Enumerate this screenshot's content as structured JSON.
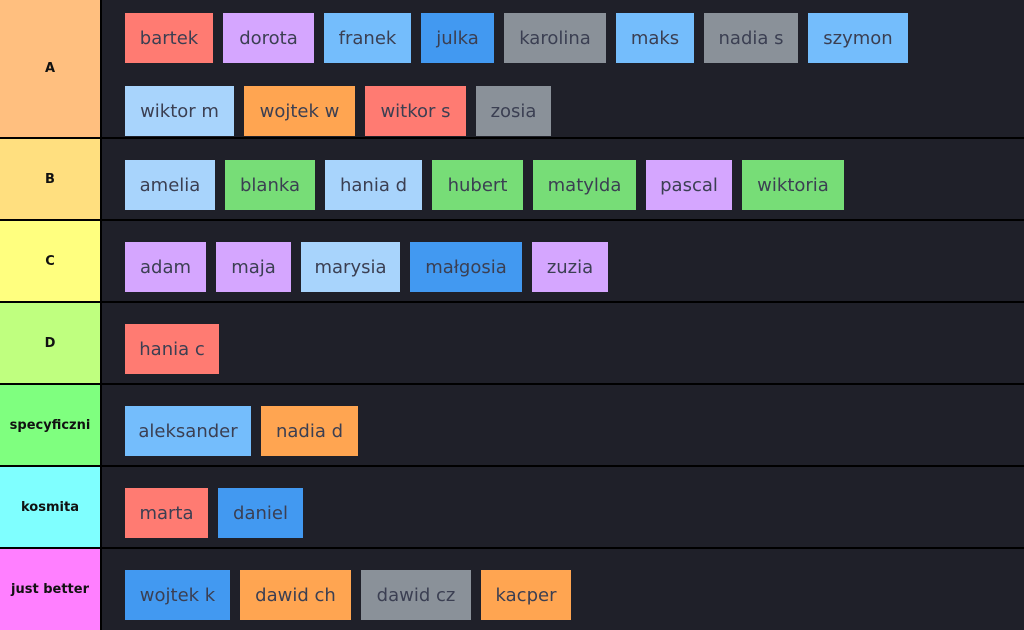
{
  "tiers": [
    {
      "label": "A",
      "color": "#ffbf7f",
      "items": [
        {
          "name": "bartek",
          "color": "#ff7b72"
        },
        {
          "name": "dorota",
          "color": "#d5a6ff"
        },
        {
          "name": "franek",
          "color": "#74bdfc"
        },
        {
          "name": "julka",
          "color": "#4299f1"
        },
        {
          "name": "karolina",
          "color": "#8a9199"
        },
        {
          "name": "maks",
          "color": "#74bdfc"
        },
        {
          "name": "nadia s",
          "color": "#8a9199"
        },
        {
          "name": "szymon",
          "color": "#74bdfc"
        },
        {
          "name": "wiktor m",
          "color": "#a8d4fc"
        },
        {
          "name": "wojtek w",
          "color": "#ffa551"
        },
        {
          "name": "witkor s",
          "color": "#ff7b72"
        },
        {
          "name": "zosia",
          "color": "#8a9199"
        }
      ]
    },
    {
      "label": "B",
      "color": "#ffdf7f",
      "items": [
        {
          "name": "amelia",
          "color": "#a8d4fc"
        },
        {
          "name": "blanka",
          "color": "#77dd77"
        },
        {
          "name": "hania d",
          "color": "#a8d4fc"
        },
        {
          "name": "hubert",
          "color": "#77dd77"
        },
        {
          "name": "matylda",
          "color": "#77dd77"
        },
        {
          "name": "pascal",
          "color": "#d5a6ff"
        },
        {
          "name": "wiktoria",
          "color": "#77dd77"
        }
      ]
    },
    {
      "label": "C",
      "color": "#ffff7f",
      "items": [
        {
          "name": "adam",
          "color": "#d5a6ff"
        },
        {
          "name": "maja",
          "color": "#d5a6ff"
        },
        {
          "name": "marysia",
          "color": "#a8d4fc"
        },
        {
          "name": "małgosia",
          "color": "#4299f1"
        },
        {
          "name": "zuzia",
          "color": "#d5a6ff"
        }
      ]
    },
    {
      "label": "D",
      "color": "#bfff7f",
      "items": [
        {
          "name": "hania c",
          "color": "#ff7b72"
        }
      ]
    },
    {
      "label": "specyficzni",
      "color": "#7fff7f",
      "items": [
        {
          "name": "aleksander",
          "color": "#74bdfc"
        },
        {
          "name": "nadia d",
          "color": "#ffa551"
        }
      ]
    },
    {
      "label": "kosmita",
      "color": "#7fffff",
      "items": [
        {
          "name": "marta",
          "color": "#ff7b72"
        },
        {
          "name": "daniel",
          "color": "#4299f1"
        }
      ]
    },
    {
      "label": "just better",
      "color": "#ff7fff",
      "items": [
        {
          "name": "wojtek k",
          "color": "#4299f1"
        },
        {
          "name": "dawid ch",
          "color": "#ffa551"
        },
        {
          "name": "dawid cz",
          "color": "#8a9199"
        },
        {
          "name": "kacper",
          "color": "#ffa551"
        }
      ]
    }
  ]
}
